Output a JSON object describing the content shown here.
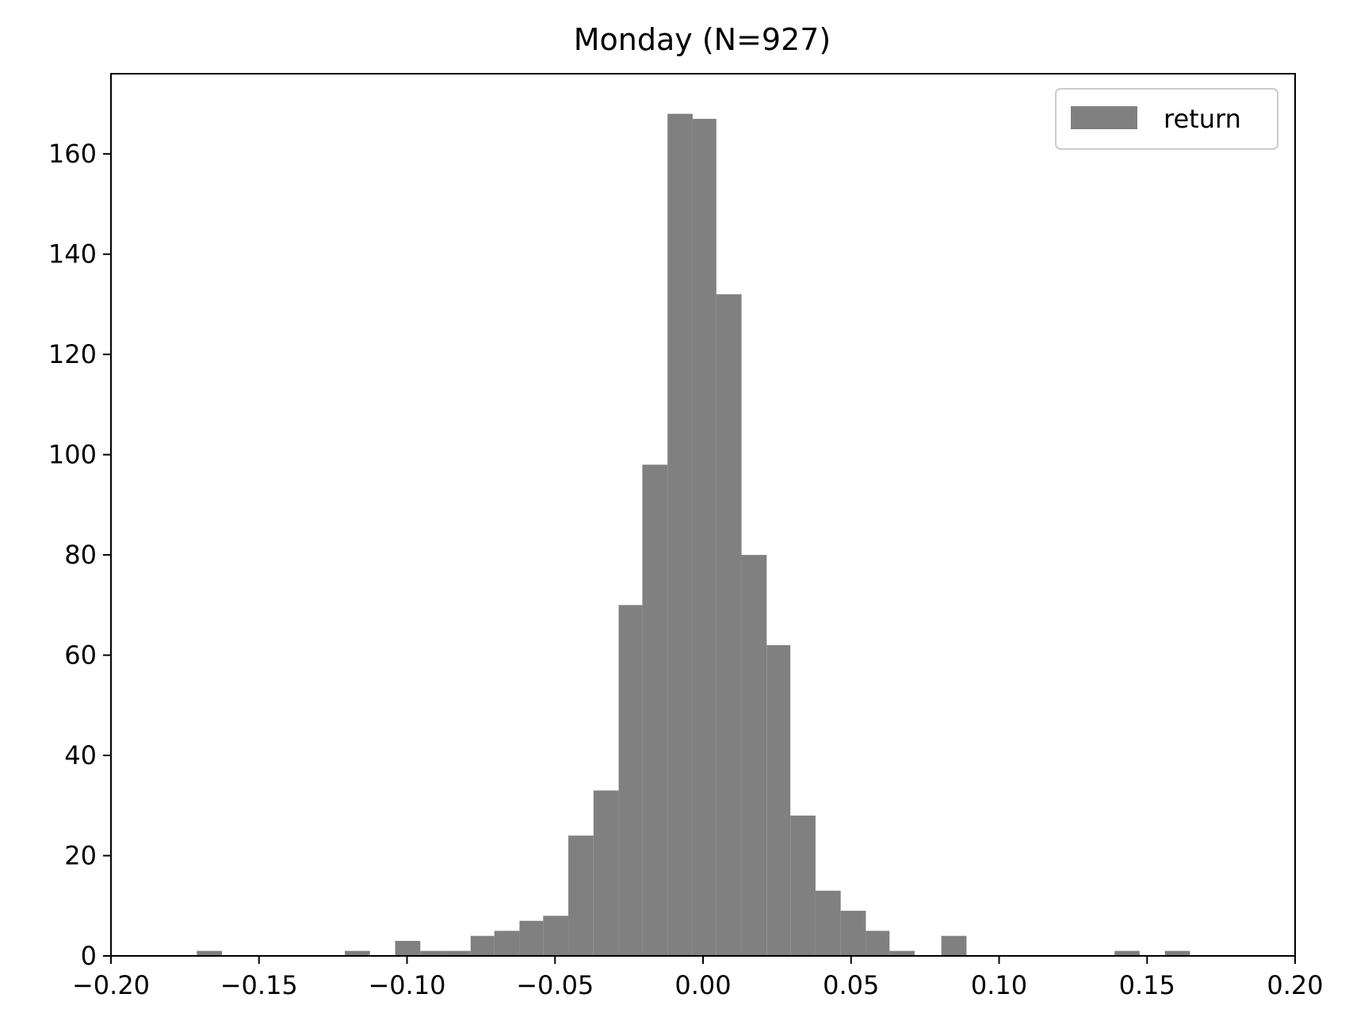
{
  "chart_data": {
    "type": "bar",
    "title": "Monday (N=927)",
    "xlabel": "",
    "ylabel": "",
    "xlim": [
      -0.2,
      0.2
    ],
    "ylim": [
      0,
      176
    ],
    "xticks": [
      -0.2,
      -0.15,
      -0.1,
      -0.05,
      0.0,
      0.05,
      0.1,
      0.15,
      0.2
    ],
    "xtick_labels": [
      "−0.20",
      "−0.15",
      "−0.10",
      "−0.05",
      "0.00",
      "0.05",
      "0.10",
      "0.15",
      "0.20"
    ],
    "yticks": [
      0,
      20,
      40,
      60,
      80,
      100,
      120,
      140,
      160
    ],
    "ytick_labels": [
      "0",
      "20",
      "40",
      "60",
      "80",
      "100",
      "120",
      "140",
      "160"
    ],
    "grid": false,
    "legend": {
      "position": "top-right",
      "entries": [
        {
          "label": "return",
          "color": "#808080"
        }
      ]
    },
    "bar_color": "#808080",
    "bins": [
      {
        "x0": -0.171,
        "x1": -0.1625,
        "count": 1
      },
      {
        "x0": -0.121,
        "x1": -0.1125,
        "count": 1
      },
      {
        "x0": -0.104,
        "x1": -0.0955,
        "count": 3
      },
      {
        "x0": -0.0955,
        "x1": -0.087,
        "count": 1
      },
      {
        "x0": -0.087,
        "x1": -0.0785,
        "count": 1
      },
      {
        "x0": -0.0785,
        "x1": -0.0705,
        "count": 4
      },
      {
        "x0": -0.0705,
        "x1": -0.062,
        "count": 5
      },
      {
        "x0": -0.062,
        "x1": -0.054,
        "count": 7
      },
      {
        "x0": -0.054,
        "x1": -0.0455,
        "count": 8
      },
      {
        "x0": -0.0455,
        "x1": -0.037,
        "count": 24
      },
      {
        "x0": -0.037,
        "x1": -0.0285,
        "count": 33
      },
      {
        "x0": -0.0285,
        "x1": -0.0205,
        "count": 70
      },
      {
        "x0": -0.0205,
        "x1": -0.012,
        "count": 98
      },
      {
        "x0": -0.012,
        "x1": -0.0035,
        "count": 168
      },
      {
        "x0": -0.0035,
        "x1": 0.0045,
        "count": 167
      },
      {
        "x0": 0.0045,
        "x1": 0.013,
        "count": 132
      },
      {
        "x0": 0.013,
        "x1": 0.0215,
        "count": 80
      },
      {
        "x0": 0.0215,
        "x1": 0.0295,
        "count": 62
      },
      {
        "x0": 0.0295,
        "x1": 0.038,
        "count": 28
      },
      {
        "x0": 0.038,
        "x1": 0.0465,
        "count": 13
      },
      {
        "x0": 0.0465,
        "x1": 0.055,
        "count": 9
      },
      {
        "x0": 0.055,
        "x1": 0.063,
        "count": 5
      },
      {
        "x0": 0.063,
        "x1": 0.0715,
        "count": 1
      },
      {
        "x0": 0.0805,
        "x1": 0.089,
        "count": 4
      },
      {
        "x0": 0.139,
        "x1": 0.1475,
        "count": 1
      },
      {
        "x0": 0.156,
        "x1": 0.1645,
        "count": 1
      }
    ]
  }
}
